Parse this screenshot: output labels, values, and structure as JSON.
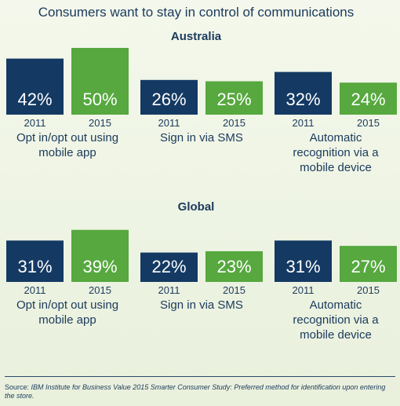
{
  "colors": {
    "year_2011": "#143a63",
    "year_2015": "#56a83f",
    "text": "#1a3a5c",
    "value_text": "#ffffff"
  },
  "chart_data": {
    "type": "bar",
    "title": "Consumers want to stay in control of communications",
    "unit": "%",
    "ylim": [
      0,
      60
    ],
    "panels": [
      {
        "region": "Australia",
        "groups": [
          {
            "label_lines": [
              "Opt in/opt out using",
              "mobile app"
            ],
            "bars": [
              {
                "year": "2011",
                "value": 42,
                "label": "42%"
              },
              {
                "year": "2015",
                "value": 50,
                "label": "50%"
              }
            ]
          },
          {
            "label_lines": [
              "Sign in via SMS"
            ],
            "bars": [
              {
                "year": "2011",
                "value": 26,
                "label": "26%"
              },
              {
                "year": "2015",
                "value": 25,
                "label": "25%"
              }
            ]
          },
          {
            "label_lines": [
              "Automatic",
              "recognition via a",
              "mobile device"
            ],
            "bars": [
              {
                "year": "2011",
                "value": 32,
                "label": "32%"
              },
              {
                "year": "2015",
                "value": 24,
                "label": "24%"
              }
            ]
          }
        ]
      },
      {
        "region": "Global",
        "groups": [
          {
            "label_lines": [
              "Opt in/opt out using",
              "mobile app"
            ],
            "bars": [
              {
                "year": "2011",
                "value": 31,
                "label": "31%"
              },
              {
                "year": "2015",
                "value": 39,
                "label": "39%"
              }
            ]
          },
          {
            "label_lines": [
              "Sign in via SMS"
            ],
            "bars": [
              {
                "year": "2011",
                "value": 22,
                "label": "22%"
              },
              {
                "year": "2015",
                "value": 23,
                "label": "23%"
              }
            ]
          },
          {
            "label_lines": [
              "Automatic",
              "recognition via a",
              "mobile device"
            ],
            "bars": [
              {
                "year": "2011",
                "value": 31,
                "label": "31%"
              },
              {
                "year": "2015",
                "value": 27,
                "label": "27%"
              }
            ]
          }
        ]
      }
    ]
  },
  "footer": {
    "source_label": "Source: ",
    "source_text": "IBM Institute for Business Value 2015 Smarter Consumer Study: Preferred method for identification upon entering the store."
  }
}
